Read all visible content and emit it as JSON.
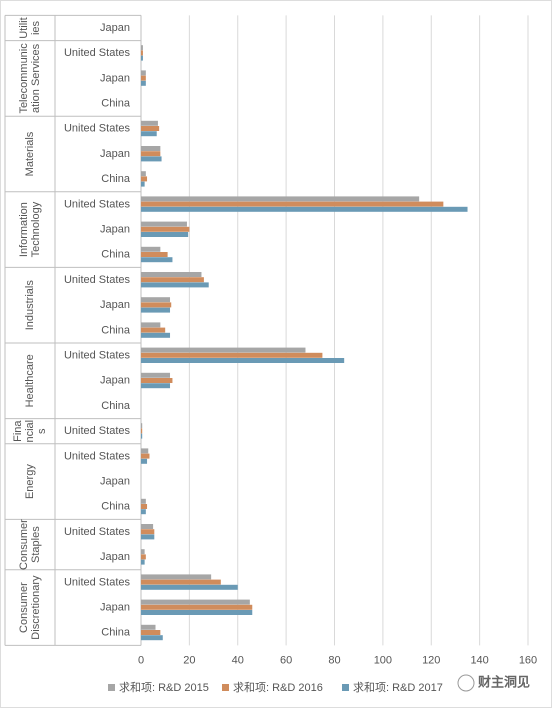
{
  "chart_data": {
    "type": "bar",
    "orientation": "horizontal",
    "groups": [
      {
        "name": [
          "Utilit",
          "ies"
        ],
        "categories": [
          "Japan"
        ]
      },
      {
        "name": [
          "Telecommunic",
          "ation Services"
        ],
        "categories": [
          "United States",
          "Japan",
          "China"
        ]
      },
      {
        "name": [
          "Materials"
        ],
        "categories": [
          "United States",
          "Japan",
          "China"
        ]
      },
      {
        "name": [
          "Information",
          "Technology"
        ],
        "categories": [
          "United States",
          "Japan",
          "China"
        ]
      },
      {
        "name": [
          "Industrials"
        ],
        "categories": [
          "United States",
          "Japan",
          "China"
        ]
      },
      {
        "name": [
          "Healthcare"
        ],
        "categories": [
          "United States",
          "Japan",
          "China"
        ]
      },
      {
        "name": [
          "Fina",
          "ncial",
          "s"
        ],
        "categories": [
          "United States"
        ]
      },
      {
        "name": [
          "Energy"
        ],
        "categories": [
          "United States",
          "Japan",
          "China"
        ]
      },
      {
        "name": [
          "Consumer",
          "Staples"
        ],
        "categories": [
          "United States",
          "Japan"
        ]
      },
      {
        "name": [
          "Consumer",
          "Discretionary"
        ],
        "categories": [
          "United States",
          "Japan",
          "China"
        ]
      }
    ],
    "series": [
      {
        "name": "求和项: R&D 2015",
        "color": "#a6a6a6",
        "values": [
          0,
          0.8,
          2,
          0,
          7,
          8,
          2,
          115,
          19,
          8,
          25,
          12,
          8,
          68,
          12,
          0,
          0.5,
          3,
          0,
          2,
          5,
          1.5,
          29,
          45,
          6
        ]
      },
      {
        "name": "求和项: R&D 2016",
        "color": "#d08c5c",
        "values": [
          0,
          0.8,
          2,
          0,
          7.5,
          8,
          2.5,
          125,
          20,
          11,
          26,
          12.5,
          10,
          75,
          13,
          0,
          0.5,
          3.5,
          0,
          2.5,
          5.5,
          2,
          33,
          46,
          8
        ]
      },
      {
        "name": "求和项: R&D 2017",
        "color": "#6a9ab5",
        "values": [
          0,
          0.8,
          2,
          0,
          6.5,
          8.5,
          1.5,
          135,
          19.5,
          13,
          28,
          12,
          12,
          84,
          12,
          0,
          0.5,
          2.5,
          0,
          2,
          5.5,
          1.5,
          40,
          46,
          9
        ]
      }
    ],
    "xlim": [
      0,
      160
    ],
    "xticks": [
      0,
      20,
      40,
      60,
      80,
      100,
      120,
      140,
      160
    ],
    "grid": true,
    "legend": "bottom",
    "watermark": "财主洞见"
  }
}
